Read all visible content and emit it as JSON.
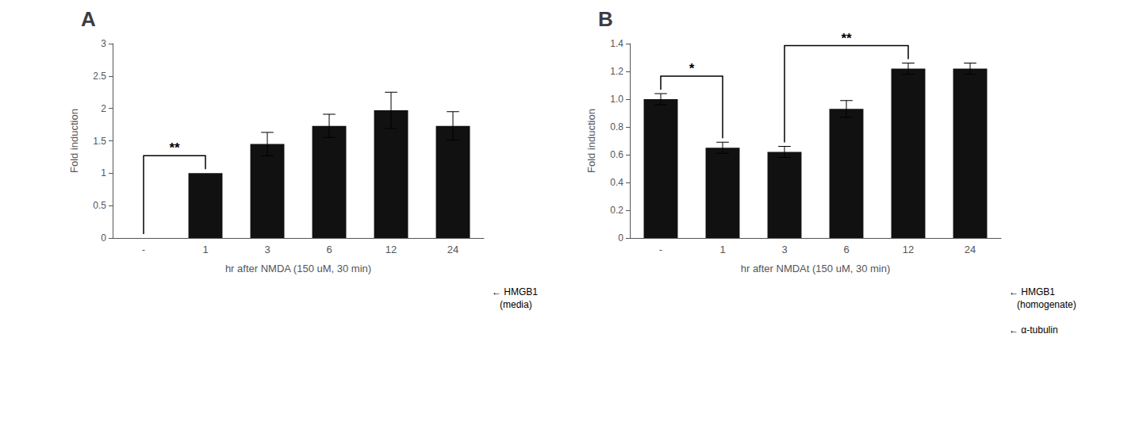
{
  "chart_data": [
    {
      "type": "bar",
      "title": "A",
      "categories": [
        "-",
        "1",
        "3",
        "6",
        "12",
        "24"
      ],
      "values": [
        0.0,
        1.0,
        1.45,
        1.73,
        1.97,
        1.73
      ],
      "errors": [
        0.0,
        0.0,
        0.18,
        0.18,
        0.28,
        0.22
      ],
      "color": "#111111",
      "ylabel": "Fold induction",
      "xlabel": "hr after NMDA (150 uM, 30 min)",
      "ylim": [
        0,
        3.0
      ],
      "yticks": [
        0,
        0.5,
        1,
        1.5,
        2,
        2.5,
        3
      ],
      "grid": false,
      "annotations": [
        {
          "text": "**",
          "from": "-",
          "to": "1"
        }
      ],
      "blot_labels": [
        "← HMGB1\n   (media)"
      ]
    },
    {
      "type": "bar",
      "title": "B",
      "categories": [
        "-",
        "1",
        "3",
        "6",
        "12",
        "24"
      ],
      "values": [
        1.0,
        0.65,
        0.62,
        0.93,
        1.22,
        1.22
      ],
      "errors": [
        0.04,
        0.04,
        0.04,
        0.06,
        0.04,
        0.04
      ],
      "color": "#111111",
      "ylabel": "Fold induction",
      "xlabel": "hr after NMDAt (150 uM, 30 min)",
      "ylim": [
        0,
        1.4
      ],
      "yticks": [
        0,
        0.2,
        0.4,
        0.6,
        0.8,
        {
          "value": 1.0,
          "label": "1.0"
        },
        1.2,
        1.4
      ],
      "grid": false,
      "annotations": [
        {
          "text": "*",
          "from": "-",
          "to": "1"
        },
        {
          "text": "**",
          "from": "3",
          "to": "12"
        }
      ],
      "blot_labels": [
        "← HMGB1\n   (homogenate)",
        "← α-tubulin"
      ]
    }
  ]
}
